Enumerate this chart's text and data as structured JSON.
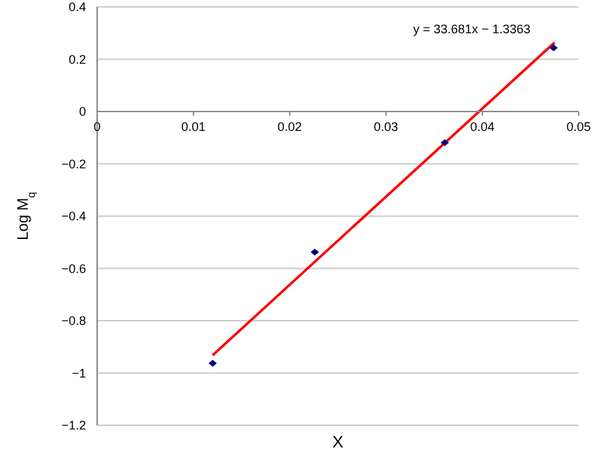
{
  "chart_data": {
    "type": "scatter",
    "xlabel": "X",
    "ylabel": "Log M$_{q}$",
    "annotations": [
      "y = 33.681x − 1.3363"
    ],
    "x": [
      0.012,
      0.0226,
      0.0361,
      0.0474
    ],
    "series": [
      {
        "color": "#000080",
        "values": [
          -0.963,
          -0.538,
          -0.119,
          0.244
        ],
        "marker": "diamond"
      },
      {
        "type": "line",
        "color": "#ff0000",
        "x": [
          0.012,
          0.0475
        ],
        "values": [
          -0.932,
          0.264
        ],
        "marker": "none",
        "line_style": "solid"
      }
    ],
    "xlim": [
      0,
      0.05
    ],
    "xticks": [
      0,
      0.01,
      0.02,
      0.03,
      0.04,
      0.05
    ],
    "ylim": [
      -1.2,
      0.4
    ],
    "yticks": [
      -1.2,
      -1,
      -0.8,
      -0.6,
      -0.4,
      -0.2,
      0,
      0.2,
      0.4
    ],
    "grid": "y"
  }
}
